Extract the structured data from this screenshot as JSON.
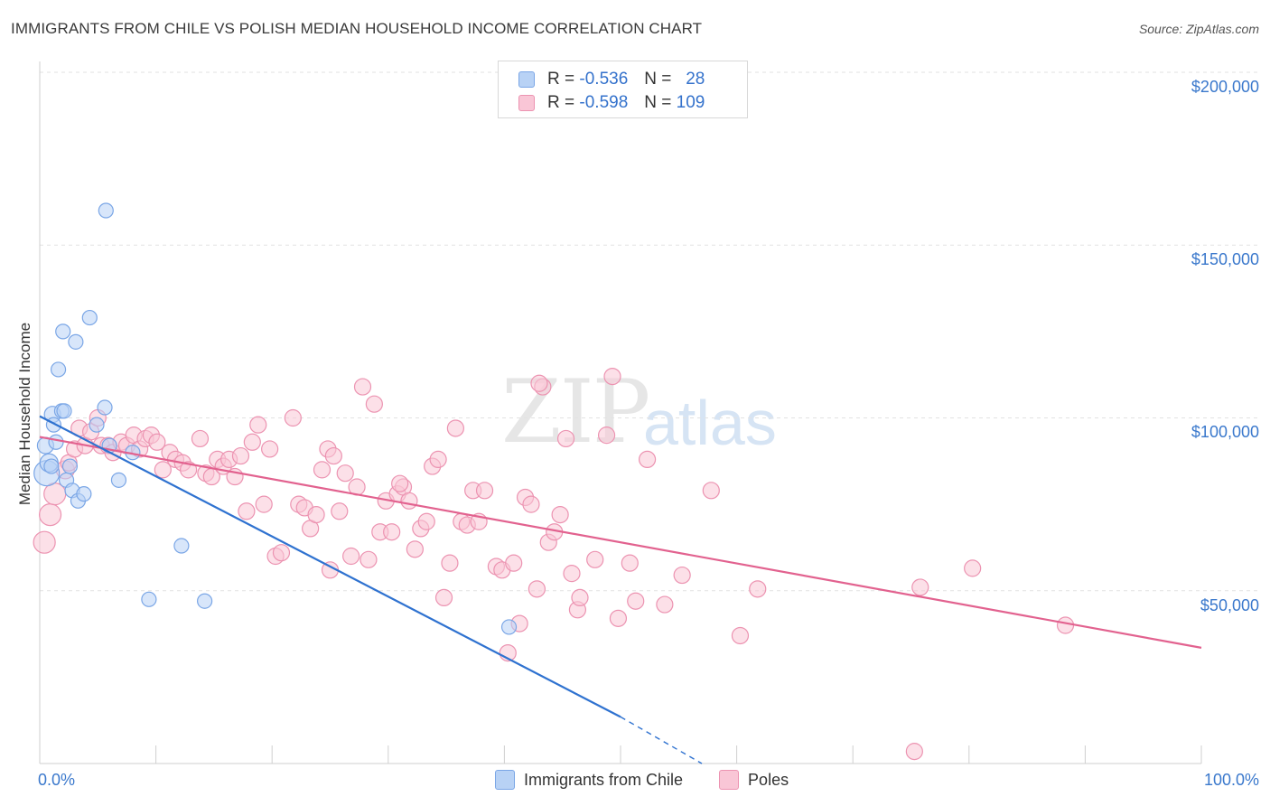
{
  "title": "IMMIGRANTS FROM CHILE VS POLISH MEDIAN HOUSEHOLD INCOME CORRELATION CHART",
  "source": "Source: ZipAtlas.com",
  "watermark": {
    "part1": "ZIP",
    "part2": "atlas"
  },
  "legend": {
    "r_label": "R =",
    "n_label": "N =",
    "series1": {
      "r": "-0.536",
      "n": "28"
    },
    "series2": {
      "r": "-0.598",
      "n": "109"
    }
  },
  "bottom_legend": {
    "series1": "Immigrants from Chile",
    "series2": "Poles"
  },
  "colors": {
    "blue_fill": "#b8d2f5",
    "blue_stroke": "#7aa6e6",
    "blue_line": "#2f72d0",
    "pink_fill": "#f9c6d6",
    "pink_stroke": "#ec93b1",
    "pink_line": "#e2628f",
    "tick_text": "#3a78cc"
  },
  "chart_data": {
    "type": "scatter",
    "title": "IMMIGRANTS FROM CHILE VS POLISH MEDIAN HOUSEHOLD INCOME CORRELATION CHART",
    "xlabel": "",
    "ylabel": "Median Household Income",
    "xlim": [
      0,
      100
    ],
    "ylim": [
      0,
      200000
    ],
    "x_tick_labels": [
      "0.0%",
      "100.0%"
    ],
    "y_ticks": [
      50000,
      100000,
      150000,
      200000
    ],
    "y_tick_labels": [
      "$50,000",
      "$100,000",
      "$150,000",
      "$200,000"
    ],
    "series": [
      {
        "name": "Immigrants from Chile",
        "trend": {
          "x0": 0,
          "y0": 100500,
          "x1": 50,
          "y1": 13500,
          "dashed_to_x": 57,
          "dashed_to_y": 0
        },
        "points": [
          [
            0.6,
            84000,
            14
          ],
          [
            0.8,
            87000,
            10
          ],
          [
            0.5,
            92000,
            9
          ],
          [
            1.1,
            101000,
            9
          ],
          [
            1.2,
            98000,
            8
          ],
          [
            1.4,
            93000,
            8
          ],
          [
            1.6,
            114000,
            8
          ],
          [
            1.9,
            102000,
            8
          ],
          [
            2.0,
            125000,
            8
          ],
          [
            2.1,
            102000,
            8
          ],
          [
            2.3,
            82000,
            8
          ],
          [
            2.6,
            86000,
            8
          ],
          [
            2.8,
            79000,
            8
          ],
          [
            3.1,
            122000,
            8
          ],
          [
            3.3,
            76000,
            8
          ],
          [
            3.8,
            78000,
            8
          ],
          [
            4.3,
            129000,
            8
          ],
          [
            4.9,
            98000,
            8
          ],
          [
            5.6,
            103000,
            8
          ],
          [
            5.7,
            160000,
            8
          ],
          [
            6.0,
            92000,
            8
          ],
          [
            6.8,
            82000,
            8
          ],
          [
            8.0,
            90000,
            8
          ],
          [
            9.4,
            47500,
            8
          ],
          [
            12.2,
            63000,
            8
          ],
          [
            14.2,
            47000,
            8
          ],
          [
            40.4,
            39500,
            8
          ],
          [
            1.0,
            86000,
            8
          ]
        ]
      },
      {
        "name": "Poles",
        "trend": {
          "x0": 0,
          "y0": 94500,
          "x1": 100,
          "y1": 33500
        },
        "points": [
          [
            0.4,
            64000,
            12
          ],
          [
            0.9,
            72000,
            12
          ],
          [
            1.3,
            78000,
            12
          ],
          [
            2.2,
            85000,
            10
          ],
          [
            2.5,
            87000,
            9
          ],
          [
            3.0,
            91000,
            9
          ],
          [
            3.4,
            97000,
            9
          ],
          [
            3.9,
            92000,
            9
          ],
          [
            4.4,
            96000,
            9
          ],
          [
            5.0,
            100000,
            9
          ],
          [
            5.3,
            92000,
            9
          ],
          [
            5.9,
            92000,
            9
          ],
          [
            6.3,
            90000,
            9
          ],
          [
            7.0,
            93000,
            9
          ],
          [
            7.5,
            92000,
            9
          ],
          [
            8.1,
            95000,
            9
          ],
          [
            8.6,
            91000,
            9
          ],
          [
            9.1,
            94000,
            9
          ],
          [
            9.6,
            95000,
            9
          ],
          [
            10.1,
            93000,
            9
          ],
          [
            10.6,
            85000,
            9
          ],
          [
            11.2,
            90000,
            9
          ],
          [
            11.7,
            88000,
            9
          ],
          [
            12.3,
            87000,
            9
          ],
          [
            12.8,
            85000,
            9
          ],
          [
            13.8,
            94000,
            9
          ],
          [
            14.3,
            84000,
            9
          ],
          [
            14.8,
            83000,
            9
          ],
          [
            15.3,
            88000,
            9
          ],
          [
            15.8,
            86000,
            9
          ],
          [
            16.3,
            88000,
            9
          ],
          [
            16.8,
            83000,
            9
          ],
          [
            17.3,
            89000,
            9
          ],
          [
            17.8,
            73000,
            9
          ],
          [
            18.3,
            93000,
            9
          ],
          [
            18.8,
            98000,
            9
          ],
          [
            19.3,
            75000,
            9
          ],
          [
            19.8,
            91000,
            9
          ],
          [
            20.3,
            60000,
            9
          ],
          [
            20.8,
            61000,
            9
          ],
          [
            21.8,
            100000,
            9
          ],
          [
            22.3,
            75000,
            9
          ],
          [
            22.8,
            74000,
            9
          ],
          [
            23.3,
            68000,
            9
          ],
          [
            23.8,
            72000,
            9
          ],
          [
            24.3,
            85000,
            9
          ],
          [
            24.8,
            91000,
            9
          ],
          [
            25.3,
            89000,
            9
          ],
          [
            25.8,
            73000,
            9
          ],
          [
            26.3,
            84000,
            9
          ],
          [
            26.8,
            60000,
            9
          ],
          [
            27.3,
            80000,
            9
          ],
          [
            27.8,
            109000,
            9
          ],
          [
            28.3,
            59000,
            9
          ],
          [
            28.8,
            104000,
            9
          ],
          [
            29.3,
            67000,
            9
          ],
          [
            29.8,
            76000,
            9
          ],
          [
            30.3,
            67000,
            9
          ],
          [
            30.8,
            78000,
            9
          ],
          [
            31.3,
            80000,
            9
          ],
          [
            31.8,
            76000,
            9
          ],
          [
            32.3,
            62000,
            9
          ],
          [
            32.8,
            68000,
            9
          ],
          [
            33.3,
            70000,
            9
          ],
          [
            33.8,
            86000,
            9
          ],
          [
            34.3,
            88000,
            9
          ],
          [
            34.8,
            48000,
            9
          ],
          [
            35.3,
            58000,
            9
          ],
          [
            35.8,
            97000,
            9
          ],
          [
            36.3,
            70000,
            9
          ],
          [
            36.8,
            69000,
            9
          ],
          [
            37.3,
            79000,
            9
          ],
          [
            37.8,
            70000,
            9
          ],
          [
            38.3,
            79000,
            9
          ],
          [
            39.3,
            57000,
            9
          ],
          [
            39.8,
            56000,
            9
          ],
          [
            40.3,
            32000,
            9
          ],
          [
            40.8,
            58000,
            9
          ],
          [
            41.3,
            40500,
            9
          ],
          [
            41.8,
            77000,
            9
          ],
          [
            42.3,
            75000,
            9
          ],
          [
            42.8,
            50500,
            9
          ],
          [
            43.3,
            109000,
            9
          ],
          [
            43.8,
            64000,
            9
          ],
          [
            44.3,
            67000,
            9
          ],
          [
            44.8,
            72000,
            9
          ],
          [
            45.3,
            94000,
            9
          ],
          [
            45.8,
            55000,
            9
          ],
          [
            46.3,
            44500,
            9
          ],
          [
            47.8,
            59000,
            9
          ],
          [
            48.8,
            95000,
            9
          ],
          [
            49.3,
            112000,
            9
          ],
          [
            49.8,
            42000,
            9
          ],
          [
            50.8,
            58000,
            9
          ],
          [
            51.3,
            47000,
            9
          ],
          [
            52.3,
            88000,
            9
          ],
          [
            53.8,
            46000,
            9
          ],
          [
            55.3,
            54500,
            9
          ],
          [
            57.8,
            79000,
            9
          ],
          [
            60.3,
            37000,
            9
          ],
          [
            61.8,
            50500,
            9
          ],
          [
            75.3,
            3500,
            9
          ],
          [
            75.8,
            51000,
            9
          ],
          [
            80.3,
            56500,
            9
          ],
          [
            88.3,
            40000,
            9
          ],
          [
            43.0,
            110000,
            9
          ],
          [
            31.0,
            81000,
            9
          ],
          [
            25.0,
            56000,
            9
          ],
          [
            46.5,
            48000,
            9
          ]
        ]
      }
    ]
  }
}
